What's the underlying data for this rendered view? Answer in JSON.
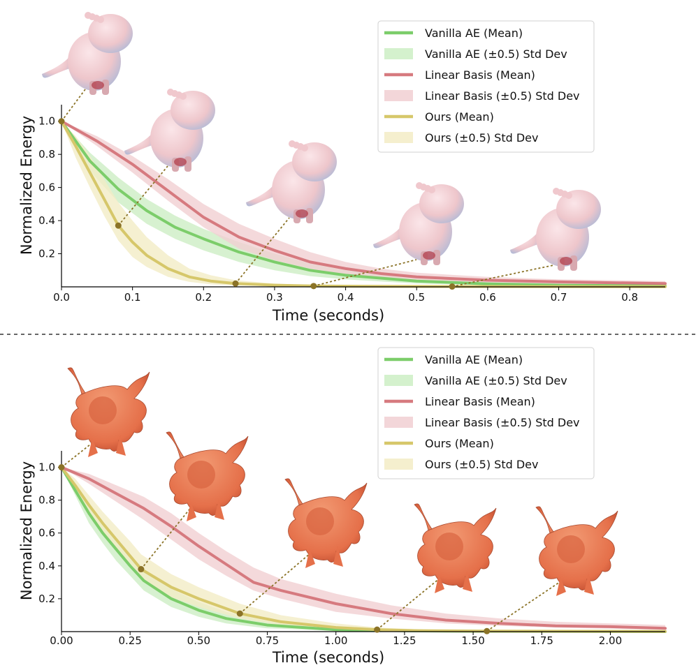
{
  "colors": {
    "vanilla": "#7ccd6a",
    "vanilla_band": "#cdeec4",
    "linear": "#d67a7f",
    "linear_band": "#f1cfd2",
    "ours": "#d6c76a",
    "ours_band": "#f3ecc6",
    "marker": "#8b7327",
    "divider": "#666666",
    "blob_skin": "#eec6cb",
    "dragon_skin": "#e5704a"
  },
  "chart_data": [
    {
      "type": "line",
      "xlabel": "Time (seconds)",
      "ylabel": "Normalized Energy",
      "xlim": [
        0,
        0.85
      ],
      "ylim": [
        0,
        1.1
      ],
      "xticks": [
        "0.0",
        "0.1",
        "0.2",
        "0.3",
        "0.4",
        "0.5",
        "0.6",
        "0.7",
        "0.8"
      ],
      "xtick_values": [
        0,
        0.1,
        0.2,
        0.3,
        0.4,
        0.5,
        0.6,
        0.7,
        0.8
      ],
      "yticks": [
        "0.2",
        "0.4",
        "0.6",
        "0.8",
        "1.0"
      ],
      "ytick_values": [
        0.2,
        0.4,
        0.6,
        0.8,
        1.0
      ],
      "legend_position": "top-right",
      "legend": [
        {
          "label": "Vanilla AE (Mean)",
          "kind": "line",
          "series": "vanilla"
        },
        {
          "label": "Vanilla AE (±0.5) Std Dev",
          "kind": "band",
          "series": "vanilla"
        },
        {
          "label": "Linear Basis (Mean)",
          "kind": "line",
          "series": "linear"
        },
        {
          "label": "Linear Basis (±0.5) Std Dev",
          "kind": "band",
          "series": "linear"
        },
        {
          "label": "Ours (Mean)",
          "kind": "line",
          "series": "ours"
        },
        {
          "label": "Ours (±0.5) Std Dev",
          "kind": "band",
          "series": "ours"
        }
      ],
      "series": [
        {
          "id": "vanilla",
          "name": "Vanilla AE",
          "x": [
            0,
            0.04,
            0.08,
            0.12,
            0.16,
            0.2,
            0.25,
            0.3,
            0.35,
            0.4,
            0.5,
            0.6,
            0.7,
            0.85
          ],
          "mean": [
            1.0,
            0.76,
            0.59,
            0.46,
            0.36,
            0.29,
            0.21,
            0.15,
            0.1,
            0.07,
            0.035,
            0.018,
            0.01,
            0.005
          ],
          "lower": [
            1.0,
            0.7,
            0.51,
            0.38,
            0.29,
            0.22,
            0.15,
            0.1,
            0.065,
            0.045,
            0.02,
            0.01,
            0.005,
            0.003
          ],
          "upper": [
            1.0,
            0.81,
            0.66,
            0.53,
            0.43,
            0.35,
            0.27,
            0.2,
            0.14,
            0.1,
            0.055,
            0.03,
            0.018,
            0.01
          ]
        },
        {
          "id": "linear",
          "name": "Linear Basis",
          "x": [
            0,
            0.05,
            0.1,
            0.15,
            0.2,
            0.25,
            0.3,
            0.35,
            0.4,
            0.45,
            0.5,
            0.6,
            0.7,
            0.85
          ],
          "mean": [
            1.0,
            0.88,
            0.74,
            0.58,
            0.42,
            0.3,
            0.22,
            0.15,
            0.11,
            0.08,
            0.06,
            0.04,
            0.03,
            0.02
          ],
          "lower": [
            1.0,
            0.85,
            0.69,
            0.52,
            0.36,
            0.23,
            0.16,
            0.11,
            0.07,
            0.05,
            0.035,
            0.02,
            0.015,
            0.01
          ],
          "upper": [
            1.0,
            0.91,
            0.79,
            0.65,
            0.5,
            0.38,
            0.29,
            0.21,
            0.15,
            0.11,
            0.085,
            0.06,
            0.045,
            0.035
          ]
        },
        {
          "id": "ours",
          "name": "Ours",
          "x": [
            0,
            0.02,
            0.04,
            0.06,
            0.08,
            0.1,
            0.12,
            0.15,
            0.18,
            0.21,
            0.245,
            0.3,
            0.355,
            0.45,
            0.55,
            0.85
          ],
          "mean": [
            1.0,
            0.85,
            0.69,
            0.53,
            0.37,
            0.27,
            0.19,
            0.11,
            0.06,
            0.035,
            0.02,
            0.01,
            0.005,
            0.003,
            0.002,
            0.001
          ],
          "lower": [
            1.0,
            0.78,
            0.6,
            0.43,
            0.28,
            0.18,
            0.12,
            0.06,
            0.03,
            0.015,
            0.008,
            0.004,
            0.002,
            0.001,
            0.001,
            0.0
          ],
          "upper": [
            1.0,
            0.91,
            0.79,
            0.65,
            0.51,
            0.4,
            0.3,
            0.19,
            0.11,
            0.07,
            0.04,
            0.02,
            0.01,
            0.007,
            0.005,
            0.003
          ]
        }
      ],
      "snapshot_markers": [
        {
          "x": 0.0,
          "y": 1.0
        },
        {
          "x": 0.08,
          "y": 0.37
        },
        {
          "x": 0.245,
          "y": 0.02
        },
        {
          "x": 0.355,
          "y": 0.005
        },
        {
          "x": 0.55,
          "y": 0.002
        }
      ],
      "snapshot_model": "blob"
    },
    {
      "type": "line",
      "xlabel": "Time (seconds)",
      "ylabel": "Normalized Energy",
      "xlim": [
        0,
        2.2
      ],
      "ylim": [
        0,
        1.1
      ],
      "xticks": [
        "0.00",
        "0.25",
        "0.50",
        "0.75",
        "1.00",
        "1.25",
        "1.50",
        "1.75",
        "2.00"
      ],
      "xtick_values": [
        0,
        0.25,
        0.5,
        0.75,
        1.0,
        1.25,
        1.5,
        1.75,
        2.0
      ],
      "yticks": [
        "0.2",
        "0.4",
        "0.6",
        "0.8",
        "1.0"
      ],
      "ytick_values": [
        0.2,
        0.4,
        0.6,
        0.8,
        1.0
      ],
      "legend_position": "top-right",
      "legend": [
        {
          "label": "Vanilla AE (Mean)",
          "kind": "line",
          "series": "vanilla"
        },
        {
          "label": "Vanilla AE (±0.5) Std Dev",
          "kind": "band",
          "series": "vanilla"
        },
        {
          "label": "Linear Basis (Mean)",
          "kind": "line",
          "series": "linear"
        },
        {
          "label": "Linear Basis (±0.5) Std Dev",
          "kind": "band",
          "series": "linear"
        },
        {
          "label": "Ours (Mean)",
          "kind": "line",
          "series": "ours"
        },
        {
          "label": "Ours (±0.5) Std Dev",
          "kind": "band",
          "series": "ours"
        }
      ],
      "series": [
        {
          "id": "vanilla",
          "name": "Vanilla AE",
          "x": [
            0,
            0.05,
            0.1,
            0.15,
            0.2,
            0.25,
            0.3,
            0.4,
            0.5,
            0.6,
            0.75,
            1.0,
            1.25,
            1.5,
            2.2
          ],
          "mean": [
            1.0,
            0.86,
            0.72,
            0.6,
            0.5,
            0.4,
            0.31,
            0.2,
            0.13,
            0.08,
            0.04,
            0.012,
            0.005,
            0.002,
            0.0
          ],
          "lower": [
            1.0,
            0.83,
            0.66,
            0.54,
            0.43,
            0.34,
            0.25,
            0.15,
            0.09,
            0.05,
            0.02,
            0.005,
            0.002,
            0.001,
            0.0
          ],
          "upper": [
            1.0,
            0.9,
            0.78,
            0.67,
            0.57,
            0.47,
            0.38,
            0.26,
            0.18,
            0.12,
            0.065,
            0.022,
            0.01,
            0.005,
            0.002
          ]
        },
        {
          "id": "ours",
          "name": "Ours",
          "x": [
            0,
            0.05,
            0.1,
            0.15,
            0.2,
            0.25,
            0.29,
            0.4,
            0.5,
            0.65,
            0.8,
            1.0,
            1.15,
            1.3,
            1.55,
            2.2
          ],
          "mean": [
            1.0,
            0.89,
            0.77,
            0.66,
            0.56,
            0.46,
            0.38,
            0.27,
            0.2,
            0.11,
            0.06,
            0.025,
            0.012,
            0.006,
            0.003,
            0.001
          ],
          "lower": [
            1.0,
            0.86,
            0.72,
            0.6,
            0.49,
            0.4,
            0.32,
            0.21,
            0.15,
            0.08,
            0.04,
            0.015,
            0.007,
            0.004,
            0.002,
            0.0
          ],
          "upper": [
            1.0,
            0.93,
            0.83,
            0.73,
            0.64,
            0.55,
            0.47,
            0.35,
            0.27,
            0.17,
            0.1,
            0.05,
            0.025,
            0.014,
            0.007,
            0.003
          ]
        },
        {
          "id": "linear",
          "name": "Linear Basis",
          "x": [
            0,
            0.1,
            0.2,
            0.3,
            0.4,
            0.5,
            0.6,
            0.7,
            0.8,
            1.0,
            1.2,
            1.4,
            1.6,
            1.8,
            2.0,
            2.2
          ],
          "mean": [
            1.0,
            0.93,
            0.84,
            0.75,
            0.64,
            0.52,
            0.41,
            0.3,
            0.25,
            0.17,
            0.11,
            0.07,
            0.05,
            0.035,
            0.03,
            0.02
          ],
          "lower": [
            1.0,
            0.9,
            0.79,
            0.68,
            0.56,
            0.44,
            0.34,
            0.25,
            0.2,
            0.12,
            0.08,
            0.05,
            0.035,
            0.025,
            0.018,
            0.012
          ],
          "upper": [
            1.0,
            0.96,
            0.89,
            0.82,
            0.72,
            0.6,
            0.49,
            0.39,
            0.32,
            0.23,
            0.16,
            0.11,
            0.08,
            0.06,
            0.05,
            0.04
          ]
        }
      ],
      "snapshot_markers": [
        {
          "x": 0.0,
          "y": 1.0
        },
        {
          "x": 0.29,
          "y": 0.38
        },
        {
          "x": 0.65,
          "y": 0.11
        },
        {
          "x": 1.15,
          "y": 0.012
        },
        {
          "x": 1.55,
          "y": 0.003
        }
      ],
      "snapshot_model": "dragon"
    }
  ]
}
